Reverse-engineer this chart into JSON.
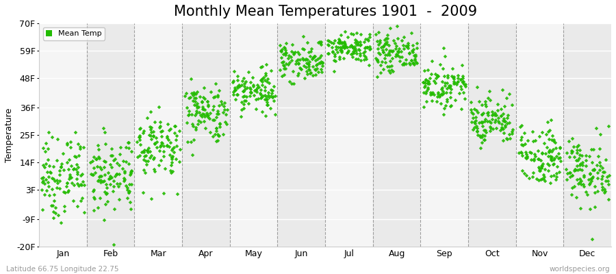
{
  "title": "Monthly Mean Temperatures 1901  -  2009",
  "ylabel": "Temperature",
  "yticks": [
    -20,
    -9,
    3,
    14,
    25,
    36,
    48,
    59,
    70
  ],
  "ytick_labels": [
    "-20F",
    "-9F",
    "3F",
    "14F",
    "25F",
    "36F",
    "48F",
    "59F",
    "70F"
  ],
  "ylim": [
    -20,
    70
  ],
  "months": [
    "Jan",
    "Feb",
    "Mar",
    "Apr",
    "May",
    "Jun",
    "Jul",
    "Aug",
    "Sep",
    "Oct",
    "Nov",
    "Dec"
  ],
  "dot_color": "#22bb00",
  "background_color": "#ffffff",
  "plot_bg_color": "#f5f5f5",
  "band_light": "#f5f5f5",
  "band_dark": "#eaeaea",
  "legend_label": "Mean Temp",
  "footer_left": "Latitude 66.75 Longitude 22.75",
  "footer_right": "worldspecies.org",
  "month_means_F": [
    8,
    9,
    21,
    34,
    43,
    55,
    60,
    58,
    45,
    31,
    17,
    10
  ],
  "month_stds_F": [
    8,
    8,
    7,
    6,
    5,
    4,
    3,
    4,
    4,
    5,
    6,
    7
  ],
  "n_years": 109,
  "title_fontsize": 15,
  "axis_fontsize": 9,
  "tick_fontsize": 9
}
